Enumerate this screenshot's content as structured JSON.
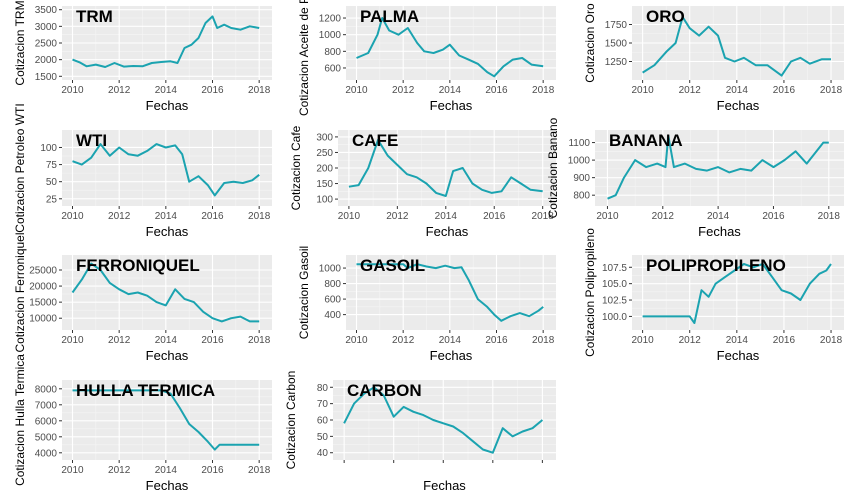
{
  "chart_data": [
    {
      "type": "line",
      "title": "TRM",
      "xlabel": "Fechas",
      "ylabel": "Cotizacion TRM",
      "xticks": [
        "2010",
        "2012",
        "2014",
        "2016",
        "2018"
      ],
      "xlim": [
        2010,
        2018.1
      ],
      "ylim": [
        1500,
        3500
      ],
      "yticks": [
        {
          "v": 1500,
          "l": "1500"
        },
        {
          "v": 2000,
          "l": "2000"
        },
        {
          "v": 2500,
          "l": "2500"
        },
        {
          "v": 3000,
          "l": "3000"
        },
        {
          "v": 3500,
          "l": "3500"
        }
      ],
      "series": [
        {
          "color": "#1BA3B0",
          "x": [
            2010,
            2010.3,
            2010.6,
            2011,
            2011.4,
            2011.8,
            2012.2,
            2012.6,
            2013,
            2013.4,
            2013.8,
            2014.2,
            2014.5,
            2014.8,
            2015.1,
            2015.4,
            2015.7,
            2016,
            2016.2,
            2016.5,
            2016.8,
            2017.2,
            2017.6,
            2018
          ],
          "values": [
            2000,
            1920,
            1800,
            1850,
            1780,
            1900,
            1790,
            1810,
            1800,
            1900,
            1930,
            1950,
            1900,
            2350,
            2450,
            2650,
            3100,
            3300,
            2950,
            3050,
            2950,
            2900,
            3000,
            2950
          ]
        }
      ]
    },
    {
      "type": "line",
      "title": "PALMA",
      "xlabel": "Fechas",
      "ylabel": "Cotizacion Aceite de Palma",
      "xticks": [
        "2010",
        "2012",
        "2014",
        "2016",
        "2018"
      ],
      "xlim": [
        2010,
        2018.1
      ],
      "ylim": [
        500,
        1300
      ],
      "yticks": [
        {
          "v": 600,
          "l": "600"
        },
        {
          "v": 800,
          "l": "800"
        },
        {
          "v": 1000,
          "l": "1000"
        },
        {
          "v": 1200,
          "l": "1200"
        }
      ],
      "series": [
        {
          "color": "#1BA3B0",
          "x": [
            2010,
            2010.5,
            2010.9,
            2011.1,
            2011.4,
            2011.8,
            2012.2,
            2012.6,
            2012.9,
            2013.3,
            2013.7,
            2014,
            2014.4,
            2014.8,
            2015.2,
            2015.6,
            2015.9,
            2016.3,
            2016.7,
            2017.1,
            2017.5,
            2018
          ],
          "values": [
            720,
            780,
            1000,
            1200,
            1050,
            1000,
            1080,
            900,
            800,
            780,
            820,
            880,
            750,
            700,
            650,
            550,
            500,
            620,
            700,
            720,
            640,
            620
          ]
        }
      ]
    },
    {
      "type": "line",
      "title": "ORO",
      "xlabel": "Fechas",
      "ylabel": "Cotizacion Oro",
      "xticks": [
        "2010",
        "2012",
        "2014",
        "2016",
        "2018"
      ],
      "xlim": [
        2010,
        2018.1
      ],
      "ylim": [
        1050,
        1950
      ],
      "yticks": [
        {
          "v": 1250,
          "l": "1250"
        },
        {
          "v": 1500,
          "l": "1500"
        },
        {
          "v": 1750,
          "l": "1750"
        }
      ],
      "series": [
        {
          "color": "#1BA3B0",
          "x": [
            2010,
            2010.5,
            2011,
            2011.4,
            2011.7,
            2012,
            2012.4,
            2012.8,
            2013.2,
            2013.5,
            2013.9,
            2014.3,
            2014.8,
            2015.3,
            2015.9,
            2016.3,
            2016.7,
            2017.1,
            2017.6,
            2018
          ],
          "values": [
            1100,
            1200,
            1380,
            1500,
            1850,
            1700,
            1600,
            1720,
            1600,
            1300,
            1250,
            1300,
            1200,
            1200,
            1060,
            1250,
            1300,
            1220,
            1280,
            1280
          ]
        }
      ]
    },
    {
      "type": "line",
      "title": "WTI",
      "xlabel": "Fechas",
      "ylabel": "Cotizacion Petroleo WTI",
      "xticks": [
        "2010",
        "2012",
        "2014",
        "2016",
        "2018"
      ],
      "xlim": [
        2010,
        2018.1
      ],
      "ylim": [
        20,
        120
      ],
      "yticks": [
        {
          "v": 25,
          "l": "25"
        },
        {
          "v": 50,
          "l": "50"
        },
        {
          "v": 75,
          "l": "75"
        },
        {
          "v": 100,
          "l": "100"
        }
      ],
      "series": [
        {
          "color": "#1BA3B0",
          "x": [
            2010,
            2010.4,
            2010.8,
            2011.2,
            2011.6,
            2012,
            2012.4,
            2012.8,
            2013.2,
            2013.6,
            2014,
            2014.4,
            2014.7,
            2015,
            2015.4,
            2015.8,
            2016.1,
            2016.5,
            2016.9,
            2017.3,
            2017.7,
            2018
          ],
          "values": [
            80,
            75,
            85,
            105,
            88,
            100,
            90,
            88,
            95,
            105,
            100,
            103,
            90,
            50,
            58,
            45,
            30,
            48,
            50,
            48,
            52,
            60
          ]
        }
      ]
    },
    {
      "type": "line",
      "title": "CAFE",
      "xlabel": "Fechas",
      "ylabel": "Cotizacion Cafe",
      "xticks": [
        "2010",
        "2012",
        "2014",
        "2016",
        "2018"
      ],
      "xlim": [
        2010,
        2018.1
      ],
      "ylim": [
        90,
        310
      ],
      "yticks": [
        {
          "v": 100,
          "l": "100"
        },
        {
          "v": 150,
          "l": "150"
        },
        {
          "v": 200,
          "l": "200"
        },
        {
          "v": 250,
          "l": "250"
        },
        {
          "v": 300,
          "l": "300"
        }
      ],
      "series": [
        {
          "color": "#1BA3B0",
          "x": [
            2010,
            2010.4,
            2010.8,
            2011.2,
            2011.6,
            2012,
            2012.4,
            2012.8,
            2013.2,
            2013.6,
            2014,
            2014.3,
            2014.7,
            2015.1,
            2015.5,
            2015.9,
            2016.3,
            2016.7,
            2017.1,
            2017.5,
            2018
          ],
          "values": [
            140,
            145,
            200,
            290,
            240,
            210,
            180,
            170,
            150,
            120,
            110,
            190,
            200,
            150,
            130,
            120,
            125,
            170,
            150,
            130,
            125
          ]
        }
      ]
    },
    {
      "type": "line",
      "title": "BANANA",
      "xlabel": "Fechas",
      "ylabel": "Cotizacion Banano",
      "xticks": [
        "2010",
        "2012",
        "2014",
        "2016",
        "2018"
      ],
      "xlim": [
        2010,
        2018.1
      ],
      "ylim": [
        760,
        1150
      ],
      "yticks": [
        {
          "v": 800,
          "l": "800"
        },
        {
          "v": 900,
          "l": "900"
        },
        {
          "v": 1000,
          "l": "1000"
        },
        {
          "v": 1100,
          "l": "1100"
        }
      ],
      "series": [
        {
          "color": "#1BA3B0",
          "x": [
            2010,
            2010.3,
            2010.6,
            2011,
            2011.4,
            2011.8,
            2012.1,
            2012.2,
            2012.4,
            2012.8,
            2013.2,
            2013.6,
            2014,
            2014.4,
            2014.8,
            2015.2,
            2015.6,
            2016,
            2016.4,
            2016.8,
            2017.2,
            2017.5,
            2017.8,
            2018
          ],
          "values": [
            780,
            800,
            900,
            1000,
            960,
            980,
            960,
            1140,
            960,
            980,
            950,
            940,
            960,
            930,
            950,
            940,
            1000,
            960,
            1000,
            1050,
            980,
            1040,
            1100,
            1100
          ]
        }
      ]
    },
    {
      "type": "line",
      "title": "FERRONIQUEL",
      "xlabel": "Fechas",
      "ylabel": "Cotizacion Ferroniquel",
      "xticks": [
        "2010",
        "2012",
        "2014",
        "2016",
        "2018"
      ],
      "xlim": [
        2010,
        2018.1
      ],
      "ylim": [
        7500,
        28500
      ],
      "yticks": [
        {
          "v": 10000,
          "l": "10000"
        },
        {
          "v": 15000,
          "l": "15000"
        },
        {
          "v": 20000,
          "l": "20000"
        },
        {
          "v": 25000,
          "l": "25000"
        }
      ],
      "series": [
        {
          "color": "#1BA3B0",
          "x": [
            2010,
            2010.4,
            2010.8,
            2011.2,
            2011.6,
            2012,
            2012.4,
            2012.8,
            2013.2,
            2013.6,
            2014,
            2014.4,
            2014.8,
            2015.2,
            2015.6,
            2016,
            2016.4,
            2016.8,
            2017.2,
            2017.6,
            2018
          ],
          "values": [
            18000,
            22000,
            27000,
            25000,
            21000,
            19000,
            17500,
            18000,
            17000,
            15000,
            14000,
            19000,
            16000,
            15000,
            12000,
            10000,
            9000,
            10000,
            10500,
            9000,
            9000
          ]
        }
      ]
    },
    {
      "type": "line",
      "title": "GASOIL",
      "xlabel": "Fechas",
      "ylabel": "Cotizacion Gasoil",
      "xticks": [
        "2010",
        "2012",
        "2014",
        "2016",
        "2018"
      ],
      "xlim": [
        2010,
        2018.1
      ],
      "ylim": [
        250,
        1120
      ],
      "yticks": [
        {
          "v": 400,
          "l": "400"
        },
        {
          "v": 600,
          "l": "600"
        },
        {
          "v": 800,
          "l": "800"
        },
        {
          "v": 1000,
          "l": "1000"
        }
      ],
      "series": [
        {
          "color": "#1BA3B0",
          "x": [
            2010,
            2012,
            2012.2,
            2012.6,
            2013,
            2013.4,
            2013.8,
            2014.2,
            2014.5,
            2014.8,
            2015.2,
            2015.6,
            2015.9,
            2016.2,
            2016.6,
            2017,
            2017.4,
            2017.8,
            2018
          ],
          "values": [
            1050,
            1050,
            1000,
            1050,
            1020,
            1000,
            1030,
            1000,
            1010,
            850,
            600,
            500,
            400,
            320,
            380,
            420,
            380,
            450,
            500
          ]
        }
      ]
    },
    {
      "type": "line",
      "title": "POLIPROPILENO",
      "xlabel": "Fechas",
      "ylabel": "Cotizacion Polipropileno",
      "xticks": [
        "2010",
        "2012",
        "2014",
        "2016",
        "2018"
      ],
      "xlim": [
        2010,
        2018.1
      ],
      "ylim": [
        98.5,
        108.8
      ],
      "yticks": [
        {
          "v": 100,
          "l": "100.0"
        },
        {
          "v": 102.5,
          "l": "102.5"
        },
        {
          "v": 105,
          "l": "105.0"
        },
        {
          "v": 107.5,
          "l": "107.5"
        }
      ],
      "series": [
        {
          "color": "#1BA3B0",
          "x": [
            2010,
            2011,
            2012,
            2012.2,
            2012.5,
            2012.8,
            2013.1,
            2013.5,
            2013.9,
            2014.3,
            2014.7,
            2015.1,
            2015.5,
            2015.9,
            2016.3,
            2016.7,
            2017.1,
            2017.5,
            2017.8,
            2018
          ],
          "values": [
            100,
            100,
            100,
            99,
            104,
            103,
            105,
            106,
            107,
            108,
            107.5,
            108,
            106,
            104,
            103.5,
            102.5,
            105,
            106.5,
            107,
            108
          ]
        }
      ]
    },
    {
      "type": "line",
      "title": "HULLA TERMICA",
      "xlabel": "Fechas",
      "ylabel": "Cotizacion Hulla Termica",
      "xticks": [
        "2010",
        "2012",
        "2014",
        "2016",
        "2018"
      ],
      "xlim": [
        2010,
        2018.1
      ],
      "ylim": [
        3800,
        8300
      ],
      "yticks": [
        {
          "v": 4000,
          "l": "4000"
        },
        {
          "v": 5000,
          "l": "5000"
        },
        {
          "v": 6000,
          "l": "6000"
        },
        {
          "v": 7000,
          "l": "7000"
        },
        {
          "v": 8000,
          "l": "8000"
        }
      ],
      "series": [
        {
          "color": "#1BA3B0",
          "x": [
            2010,
            2013.8,
            2014.2,
            2014.6,
            2015,
            2015.4,
            2015.8,
            2016.1,
            2016.3,
            2017,
            2018
          ],
          "values": [
            7900,
            7900,
            7700,
            6800,
            5800,
            5300,
            4700,
            4200,
            4500,
            4500,
            4500
          ]
        }
      ]
    },
    {
      "type": "line",
      "title": "CARBON",
      "xlabel": "Fechas",
      "ylabel": "Cotizacion Carbon",
      "xticks": [
        "",
        "",
        "",
        "",
        ""
      ],
      "xlim": [
        2010,
        2018.1
      ],
      "ylim": [
        38,
        82
      ],
      "yticks": [
        {
          "v": 40,
          "l": "40"
        },
        {
          "v": 50,
          "l": "50"
        },
        {
          "v": 60,
          "l": "60"
        },
        {
          "v": 70,
          "l": "70"
        },
        {
          "v": 80,
          "l": "80"
        }
      ],
      "series": [
        {
          "color": "#1BA3B0",
          "x": [
            2010,
            2010.4,
            2010.8,
            2011.2,
            2011.6,
            2012,
            2012.4,
            2012.8,
            2013.2,
            2013.6,
            2014,
            2014.4,
            2014.8,
            2015.2,
            2015.6,
            2016,
            2016.4,
            2016.8,
            2017.2,
            2017.6,
            2018
          ],
          "values": [
            58,
            70,
            76,
            80,
            75,
            62,
            68,
            65,
            63,
            60,
            58,
            56,
            52,
            47,
            42,
            40,
            55,
            50,
            53,
            55,
            60
          ]
        }
      ]
    }
  ]
}
